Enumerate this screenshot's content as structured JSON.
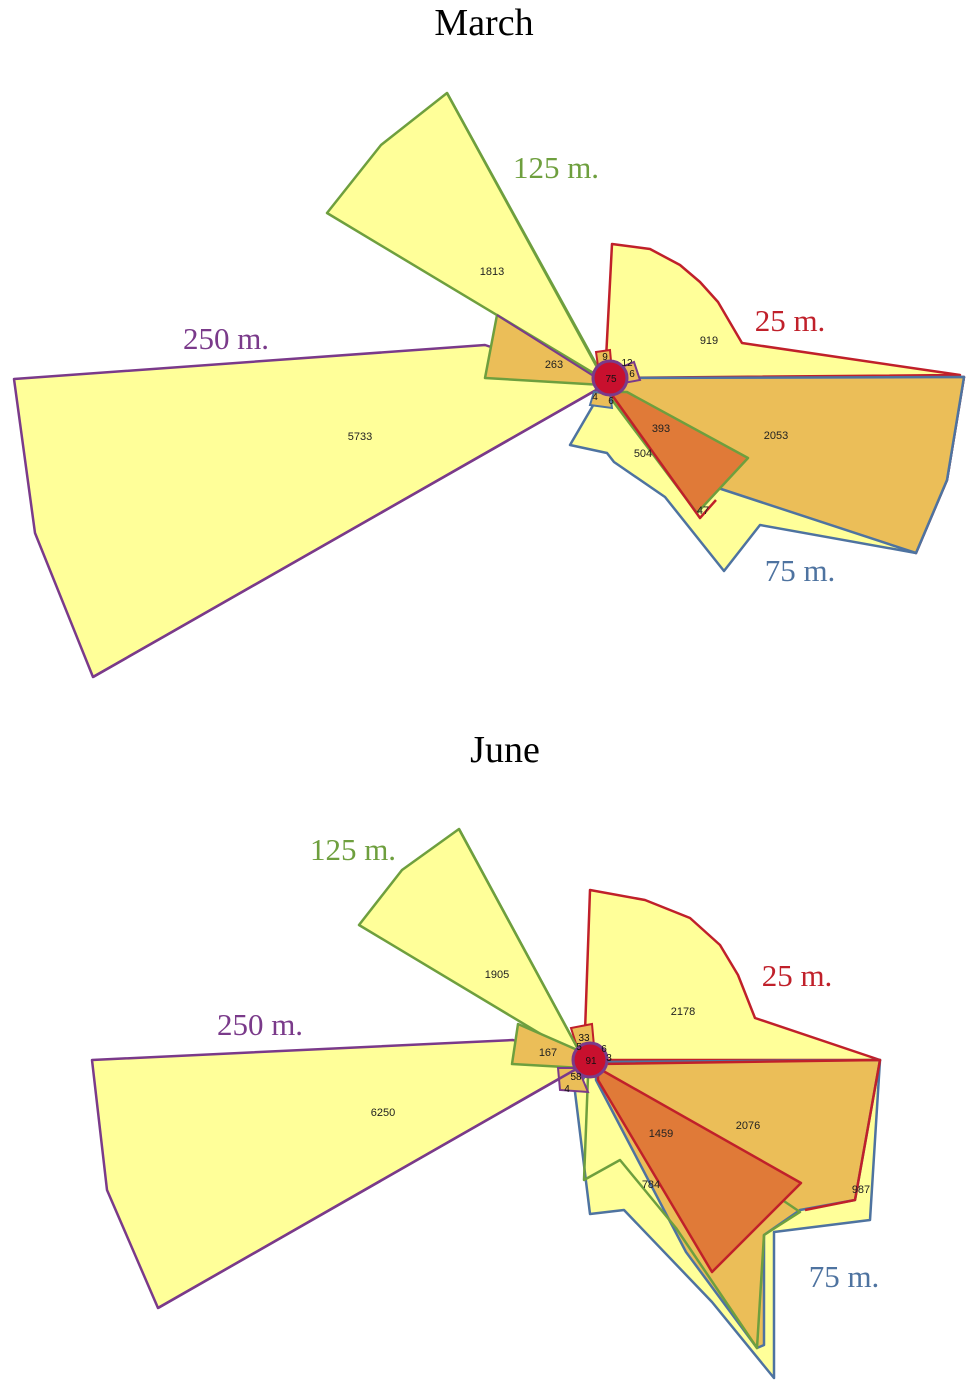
{
  "colors": {
    "m25": "#c0202a",
    "m75": "#4e73a0",
    "m125": "#6e9f3e",
    "m250": "#7a3a8a",
    "fill_light": "#ffff99",
    "fill_mid": "#ebbe58",
    "fill_dark": "#e07a38",
    "center": "#c8102e"
  },
  "march": {
    "title": "March",
    "labels": {
      "m125": "125 m.",
      "m25": "25 m.",
      "m250": "250 m.",
      "m75": "75 m."
    },
    "values": {
      "v1813": "1813",
      "v919": "919",
      "v263": "263",
      "v5733": "5733",
      "v2053": "2053",
      "v393": "393",
      "v504": "504",
      "v47": "47",
      "v75": "75",
      "v9": "9",
      "v12": "12",
      "v6a": "6",
      "v4": "4",
      "v6b": "6"
    }
  },
  "june": {
    "title": "June",
    "labels": {
      "m125": "125 m.",
      "m25": "25 m.",
      "m250": "250 m.",
      "m75": "75 m."
    },
    "values": {
      "v1905": "1905",
      "v2178": "2178",
      "v167": "167",
      "v6250": "6250",
      "v2076": "2076",
      "v1459": "1459",
      "v784": "784",
      "v987": "987",
      "v33": "33",
      "v91": "91",
      "v58": "58",
      "v4": "4",
      "v6": "6",
      "v3": "3",
      "v5": "5"
    }
  }
}
